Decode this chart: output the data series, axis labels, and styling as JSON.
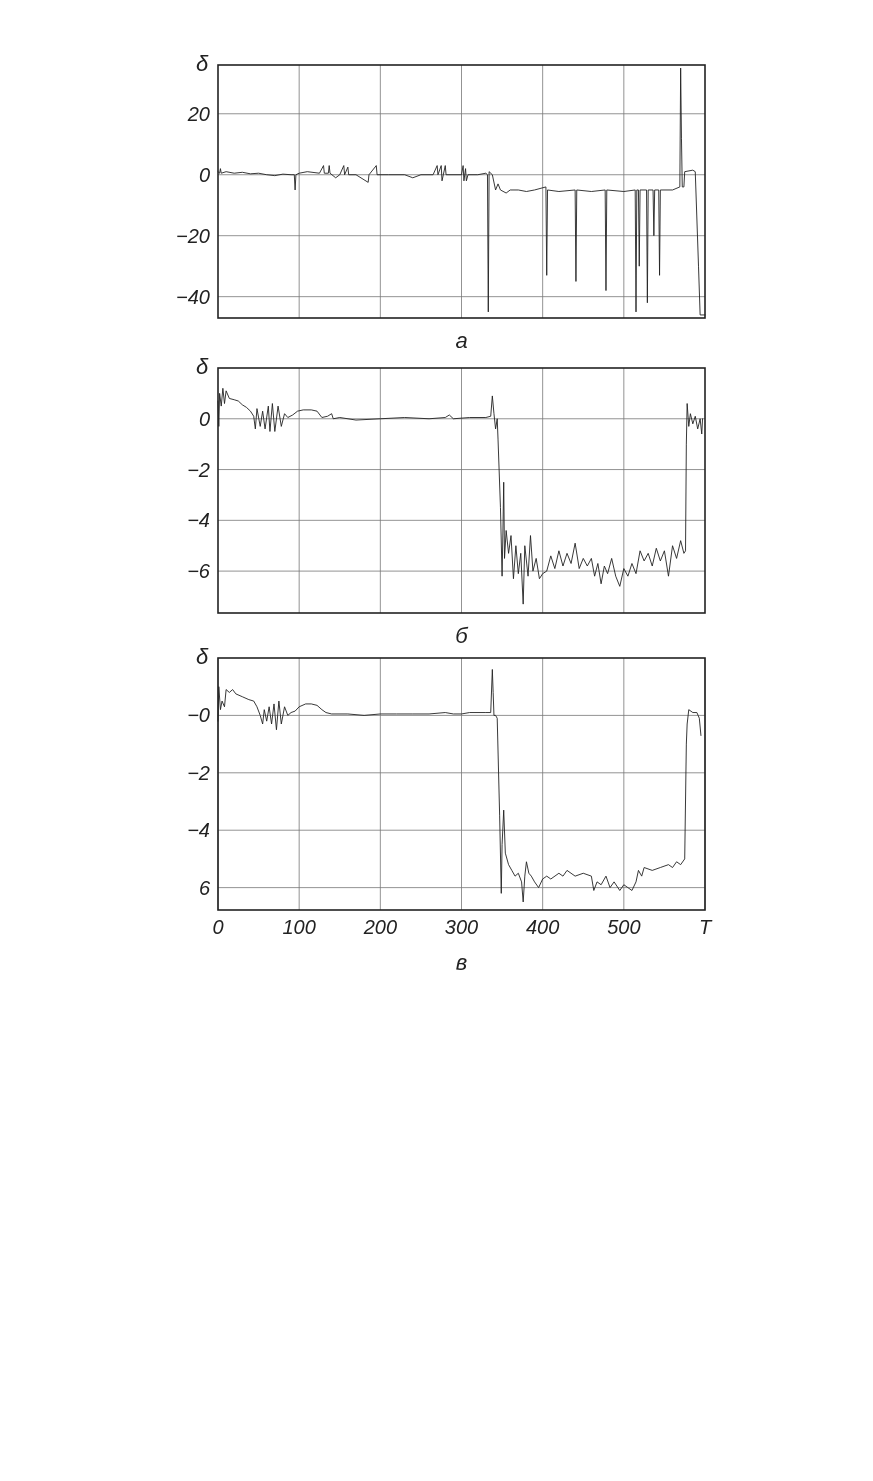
{
  "chart_data": [
    {
      "type": "line",
      "ylabel": "δ",
      "xlabel": "а",
      "xlim": [
        0,
        600
      ],
      "xticks": [
        100,
        200,
        300,
        400,
        500
      ],
      "ylim": [
        -47,
        36
      ],
      "yticks": [
        -40,
        -20,
        0,
        20
      ],
      "grid": true,
      "tick_labels": "y",
      "marker": "none",
      "line_style": "solid",
      "series": [
        {
          "color": "#222222",
          "x": [
            0,
            2,
            3,
            4,
            10,
            20,
            30,
            40,
            50,
            60,
            70,
            80,
            90,
            94,
            95,
            96,
            100,
            110,
            125,
            130,
            131,
            136,
            137,
            138,
            145,
            150,
            155,
            156,
            160,
            161,
            170,
            185,
            186,
            195,
            196,
            210,
            230,
            240,
            250,
            265,
            270,
            271,
            275,
            276,
            280,
            281,
            300,
            302,
            303,
            305,
            306,
            308,
            320,
            330,
            332,
            333,
            334,
            338,
            342,
            345,
            348,
            355,
            360,
            370,
            380,
            390,
            404,
            405,
            406,
            420,
            440,
            441,
            442,
            460,
            477,
            478,
            479,
            500,
            514,
            515,
            516,
            518,
            519,
            520,
            528,
            529,
            530,
            536,
            537,
            538,
            543,
            544,
            545,
            560,
            569,
            570,
            571,
            572,
            574,
            575,
            585,
            588,
            592,
            594,
            600
          ],
          "values": [
            1,
            0.5,
            2,
            0.5,
            1,
            0.5,
            0.8,
            0.3,
            0.5,
            0,
            -0.3,
            0.2,
            0,
            0,
            -5,
            0,
            0.5,
            1,
            0.5,
            3,
            0.5,
            0.5,
            3,
            0.5,
            -1,
            0,
            3,
            0,
            2.5,
            0,
            0,
            -2.5,
            0,
            3,
            0,
            0,
            0,
            -1,
            0,
            0,
            3,
            0,
            3,
            -2,
            3,
            0,
            0,
            3,
            -2,
            2,
            -2,
            0,
            0,
            0.5,
            0,
            -45,
            1,
            0,
            -5,
            -3,
            -5,
            -6,
            -5,
            -5,
            -5.5,
            -5,
            -4,
            -33,
            -5,
            -5.5,
            -5,
            -35,
            -5,
            -5.5,
            -5,
            -38,
            -5,
            -5.5,
            -5,
            -45,
            -5,
            -5,
            -30,
            -5,
            -5,
            -42,
            -5,
            -5,
            -20,
            -5,
            -5,
            -33,
            -5,
            -5,
            -4,
            35,
            12,
            -4,
            -4,
            1,
            1.5,
            1,
            -30,
            -46,
            -46
          ]
        }
      ]
    },
    {
      "type": "line",
      "ylabel": "δ",
      "xlabel": "б",
      "xlim": [
        0,
        600
      ],
      "xticks": [
        100,
        200,
        300,
        400,
        500
      ],
      "ylim": [
        -7.65,
        2
      ],
      "yticks": [
        -6,
        -4,
        -2,
        0
      ],
      "grid": true,
      "tick_labels": "y",
      "marker": "none",
      "line_style": "solid",
      "series": [
        {
          "color": "#222222",
          "x": [
            0,
            1,
            2,
            4,
            6,
            8,
            10,
            14,
            20,
            25,
            30,
            35,
            40,
            44,
            46,
            48,
            52,
            55,
            58,
            62,
            64,
            67,
            70,
            74,
            78,
            82,
            86,
            92,
            98,
            105,
            115,
            122,
            128,
            135,
            140,
            142,
            150,
            170,
            200,
            230,
            260,
            280,
            285,
            290,
            310,
            330,
            336,
            338,
            340,
            342,
            344,
            345,
            348,
            350,
            351,
            352,
            353,
            355,
            358,
            361,
            364,
            367,
            370,
            373,
            376,
            378,
            382,
            385,
            388,
            392,
            396,
            400,
            405,
            410,
            415,
            420,
            425,
            430,
            435,
            440,
            445,
            450,
            455,
            460,
            464,
            468,
            472,
            476,
            480,
            485,
            490,
            495,
            500,
            505,
            510,
            515,
            520,
            525,
            530,
            535,
            540,
            545,
            550,
            555,
            560,
            565,
            570,
            574,
            576,
            577,
            578,
            580,
            582,
            585,
            588,
            591,
            594,
            596,
            597
          ],
          "values": [
            0.7,
            -0.3,
            1,
            0.5,
            1.2,
            0.6,
            1.1,
            0.8,
            0.75,
            0.7,
            0.55,
            0.45,
            0.3,
            0.1,
            -0.4,
            0.4,
            -0.3,
            0.3,
            -0.4,
            0.5,
            -0.5,
            0.6,
            -0.5,
            0.5,
            -0.3,
            0.2,
            0.05,
            0.15,
            0.3,
            0.35,
            0.35,
            0.3,
            0.05,
            0.1,
            0.2,
            0,
            0.05,
            -0.05,
            0,
            0.05,
            0,
            0.05,
            0.15,
            0,
            0.05,
            0.05,
            0.1,
            0.9,
            0.2,
            -0.4,
            0,
            -0.8,
            -3.5,
            -6.2,
            -4.5,
            -2.5,
            -5.5,
            -4.4,
            -5.3,
            -4.6,
            -6.3,
            -5,
            -6.1,
            -5.3,
            -7.3,
            -5,
            -6.2,
            -4.6,
            -6,
            -5.5,
            -6.3,
            -6.1,
            -6,
            -5.4,
            -5.9,
            -5.2,
            -5.8,
            -5.3,
            -5.7,
            -4.9,
            -5.9,
            -5.5,
            -5.8,
            -5.5,
            -6.2,
            -5.7,
            -6.5,
            -5.8,
            -6.1,
            -5.5,
            -6.2,
            -6.6,
            -5.9,
            -6.2,
            -5.7,
            -6.1,
            -5.2,
            -5.6,
            -5.3,
            -5.8,
            -5.1,
            -5.6,
            -5.2,
            -6.2,
            -5,
            -5.5,
            -4.8,
            -5.3,
            -5.2,
            -1,
            0.6,
            -0.3,
            0.2,
            -0.2,
            0.1,
            -0.4,
            0,
            -0.6,
            0
          ]
        }
      ]
    },
    {
      "type": "line",
      "ylabel": "δ",
      "xlabel": "в",
      "xlim": [
        0,
        600
      ],
      "xticks": [
        0,
        100,
        200,
        300,
        400,
        500,
        {
          "value": 600,
          "label": "T"
        }
      ],
      "ylim": [
        -6.78,
        2
      ],
      "yticks": [
        {
          "value": -6,
          "label": "6"
        },
        {
          "value": -4,
          "label": "−4"
        },
        {
          "value": -2,
          "label": "−2"
        },
        {
          "value": 0,
          "label": "−0"
        }
      ],
      "grid": true,
      "marker": "none",
      "line_style": "solid",
      "series": [
        {
          "color": "#222222",
          "x": [
            0,
            1,
            3,
            5,
            8,
            10,
            14,
            18,
            22,
            30,
            38,
            44,
            48,
            52,
            55,
            57,
            60,
            63,
            66,
            69,
            72,
            75,
            78,
            82,
            86,
            90,
            95,
            100,
            108,
            115,
            122,
            128,
            133,
            140,
            160,
            180,
            200,
            220,
            240,
            260,
            280,
            290,
            300,
            310,
            330,
            336,
            338,
            339,
            340,
            342,
            344,
            347,
            349,
            350,
            352,
            354,
            358,
            362,
            366,
            370,
            374,
            376,
            378,
            380,
            383,
            386,
            390,
            395,
            400,
            405,
            410,
            420,
            425,
            430,
            440,
            450,
            460,
            463,
            467,
            472,
            478,
            483,
            488,
            495,
            500,
            505,
            510,
            515,
            518,
            522,
            525,
            535,
            545,
            555,
            560,
            565,
            570,
            575,
            577,
            578,
            580,
            585,
            590,
            593,
            595
          ],
          "values": [
            -0.2,
            1,
            0.2,
            0.5,
            0.3,
            0.9,
            0.8,
            0.9,
            0.75,
            0.65,
            0.55,
            0.5,
            0.3,
            0,
            -0.3,
            0.2,
            -0.2,
            0.3,
            -0.3,
            0.4,
            -0.5,
            0.5,
            -0.3,
            0.3,
            0,
            0.1,
            0.15,
            0.3,
            0.4,
            0.4,
            0.35,
            0.2,
            0.1,
            0.05,
            0.05,
            0,
            0.05,
            0.05,
            0.05,
            0.05,
            0.1,
            0.05,
            0.05,
            0.1,
            0.1,
            0.1,
            1.6,
            0.8,
            0,
            0,
            -0.1,
            -3.5,
            -6.2,
            -4.5,
            -3.3,
            -4.8,
            -5.2,
            -5.4,
            -5.6,
            -5.5,
            -5.8,
            -6.5,
            -5.6,
            -5.1,
            -5.5,
            -5.6,
            -5.8,
            -6,
            -5.7,
            -5.6,
            -5.7,
            -5.5,
            -5.6,
            -5.4,
            -5.6,
            -5.5,
            -5.6,
            -6.1,
            -5.8,
            -5.9,
            -5.6,
            -6,
            -5.8,
            -6.1,
            -5.9,
            -6,
            -6.1,
            -5.8,
            -5.4,
            -5.6,
            -5.3,
            -5.4,
            -5.3,
            -5.2,
            -5.3,
            -5.1,
            -5.2,
            -5,
            -1,
            -0.3,
            0.2,
            0.1,
            0.1,
            -0.1,
            -0.7
          ]
        }
      ]
    }
  ]
}
